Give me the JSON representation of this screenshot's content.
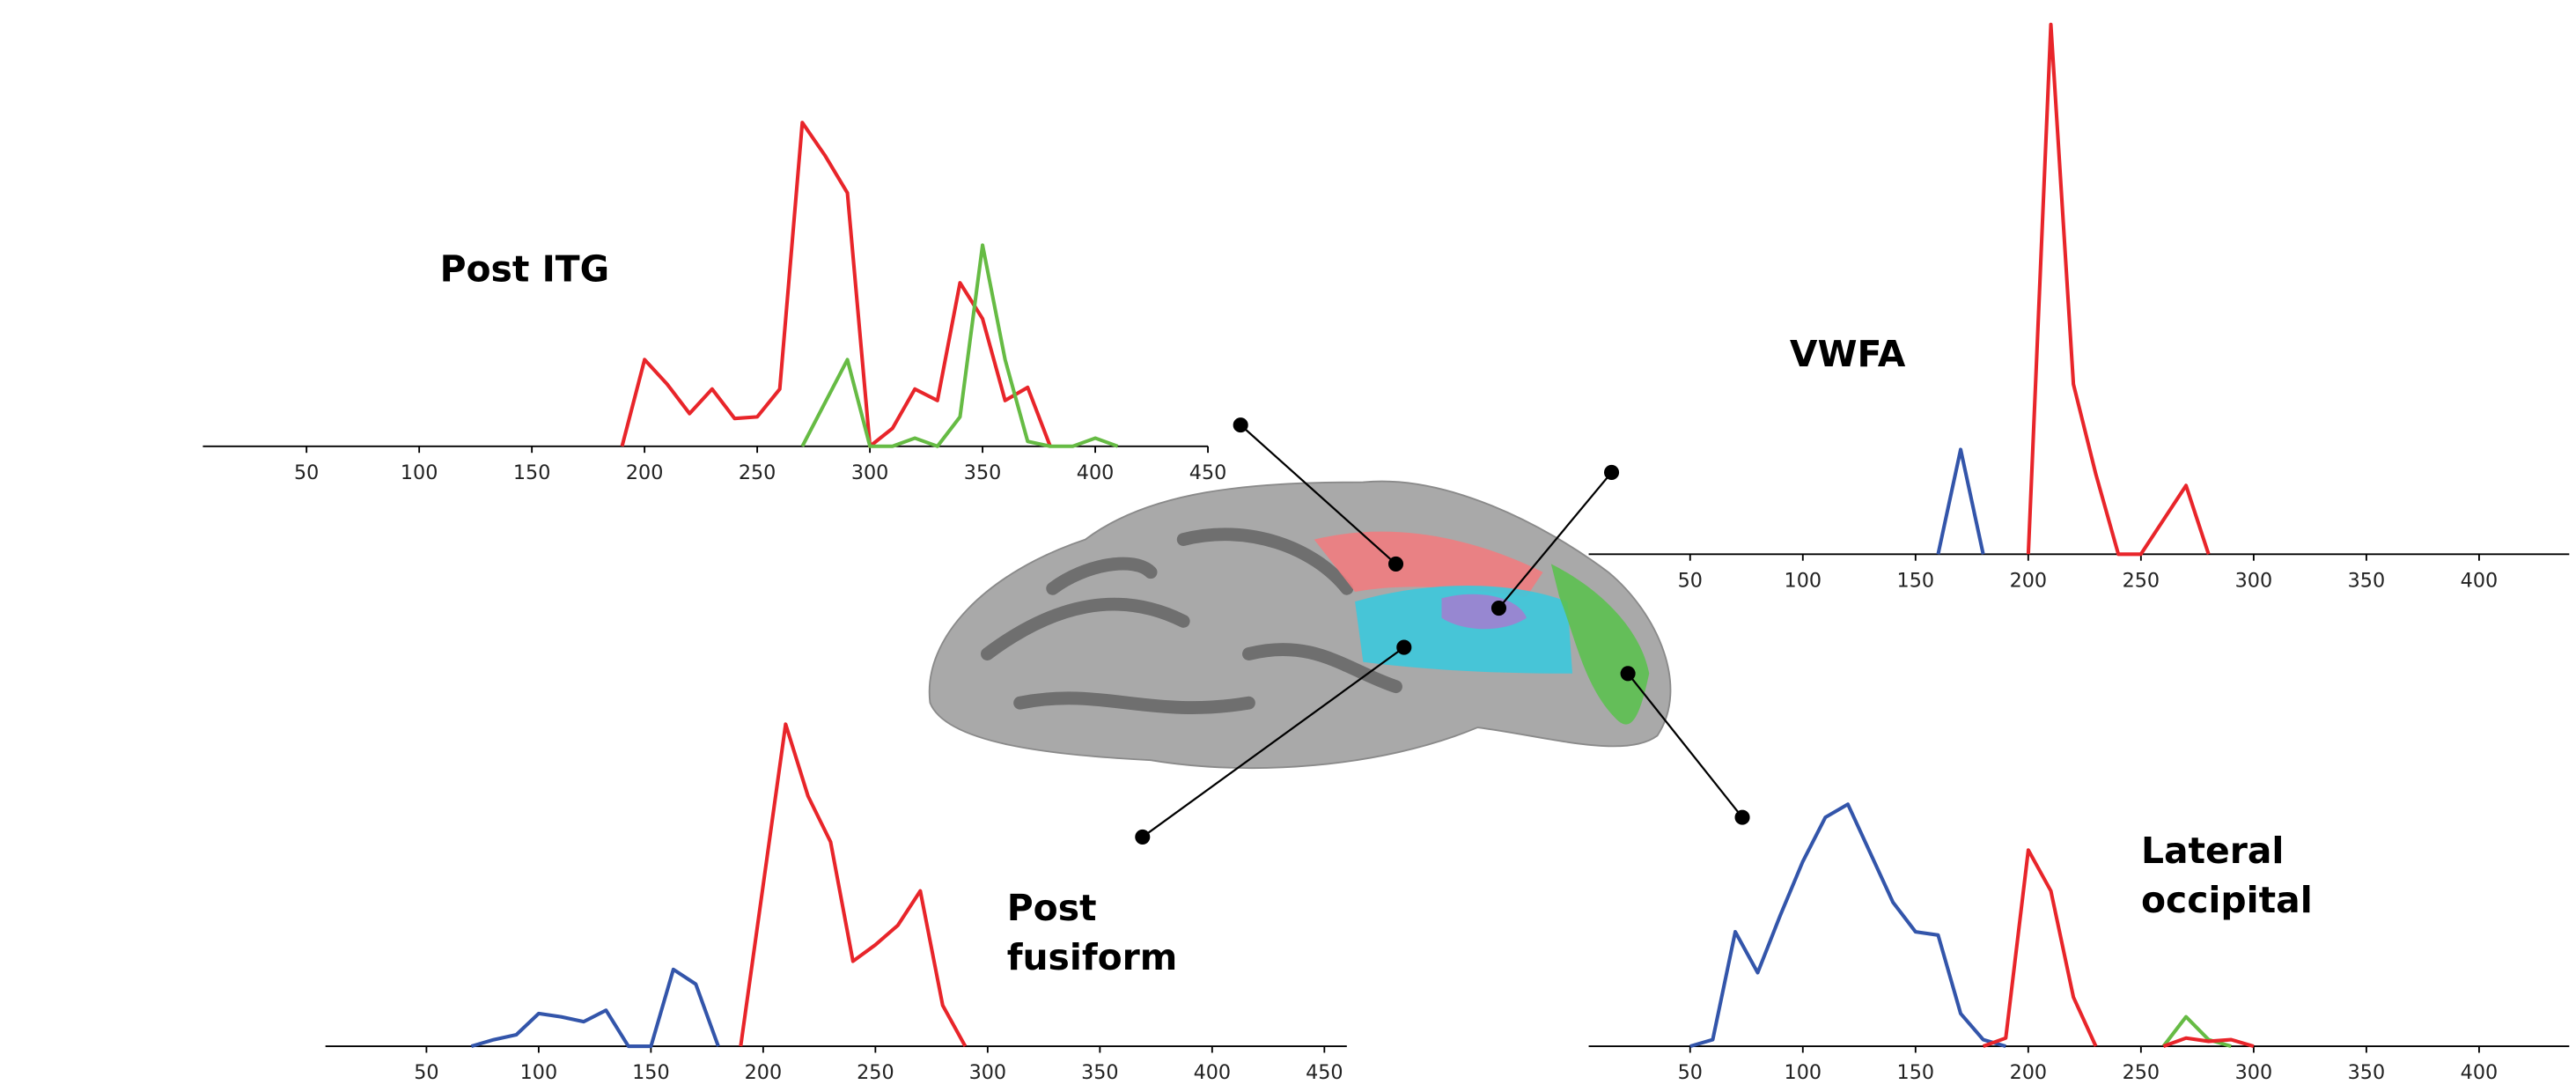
{
  "chart_data": [
    {
      "type": "line",
      "label": [
        "Post ITG"
      ],
      "xlim": [
        4,
        450
      ],
      "ylim": [
        0,
        200
      ],
      "xticks": [
        50,
        100,
        150,
        200,
        250,
        300,
        350,
        400,
        450
      ],
      "series": [
        {
          "color": "#e8252a",
          "x": [
            190,
            200,
            210,
            220,
            230,
            240,
            250,
            260,
            270,
            280,
            290,
            300,
            310,
            320,
            330,
            340,
            350,
            360,
            370,
            380
          ],
          "values": [
            0,
            53,
            38,
            20,
            35,
            17,
            18,
            35,
            198,
            178,
            155,
            0,
            11,
            35,
            28,
            100,
            78,
            28,
            36,
            0
          ]
        },
        {
          "color": "#66bb44",
          "x": [
            270,
            290,
            300,
            310,
            320,
            330,
            340,
            350,
            360,
            370,
            380,
            390,
            400,
            410
          ],
          "values": [
            0,
            53,
            0,
            0,
            5,
            0,
            18,
            123,
            53,
            3,
            0,
            0,
            5,
            0
          ]
        }
      ]
    },
    {
      "type": "line",
      "label": [
        "VWFA"
      ],
      "xlim": [
        5,
        440
      ],
      "ylim": [
        0,
        330
      ],
      "xticks": [
        50,
        100,
        150,
        200,
        250,
        300,
        350,
        400
      ],
      "series": [
        {
          "color": "#3355aa",
          "x": [
            160,
            170,
            180
          ],
          "values": [
            0,
            64,
            0
          ]
        },
        {
          "color": "#e8252a",
          "x": [
            200,
            210,
            220,
            230,
            240,
            250,
            270,
            280
          ],
          "values": [
            0,
            324,
            104,
            49,
            0,
            0,
            42,
            0
          ]
        }
      ]
    },
    {
      "type": "line",
      "label": [
        "Post",
        "fusiform"
      ],
      "xlim": [
        5,
        460
      ],
      "ylim": [
        0,
        200
      ],
      "xticks": [
        50,
        100,
        150,
        200,
        250,
        300,
        350,
        400,
        450
      ],
      "series": [
        {
          "color": "#3355aa",
          "x": [
            70,
            80,
            90,
            100,
            110,
            120,
            130,
            140,
            150,
            160,
            170,
            180
          ],
          "values": [
            0,
            4,
            7,
            20,
            18,
            15,
            22,
            0,
            0,
            47,
            38,
            0
          ]
        },
        {
          "color": "#e8252a",
          "x": [
            190,
            210,
            220,
            230,
            240,
            250,
            260,
            270,
            280,
            290
          ],
          "values": [
            0,
            197,
            153,
            125,
            52,
            62,
            74,
            95,
            25,
            0
          ]
        }
      ]
    },
    {
      "type": "line",
      "label": [
        "Lateral",
        "occipital"
      ],
      "xlim": [
        5,
        440
      ],
      "ylim": [
        0,
        200
      ],
      "xticks": [
        50,
        100,
        150,
        200,
        250,
        300,
        350,
        400
      ],
      "series": [
        {
          "color": "#3355aa",
          "x": [
            50,
            60,
            70,
            80,
            90,
            100,
            110,
            120,
            130,
            140,
            150,
            160,
            170,
            180,
            190
          ],
          "values": [
            0,
            4,
            70,
            45,
            80,
            113,
            140,
            148,
            118,
            88,
            70,
            68,
            20,
            4,
            0
          ]
        },
        {
          "color": "#e8252a",
          "x": [
            180,
            190,
            200,
            210,
            220,
            230
          ],
          "values": [
            0,
            5,
            120,
            95,
            30,
            0
          ]
        },
        {
          "color": "#66bb44",
          "x": [
            260,
            270,
            280,
            290
          ],
          "values": [
            0,
            18,
            4,
            0
          ]
        },
        {
          "color": "#e8252a",
          "x": [
            260,
            270,
            280,
            290,
            300
          ],
          "values": [
            0,
            5,
            3,
            4,
            0
          ]
        }
      ]
    }
  ]
}
